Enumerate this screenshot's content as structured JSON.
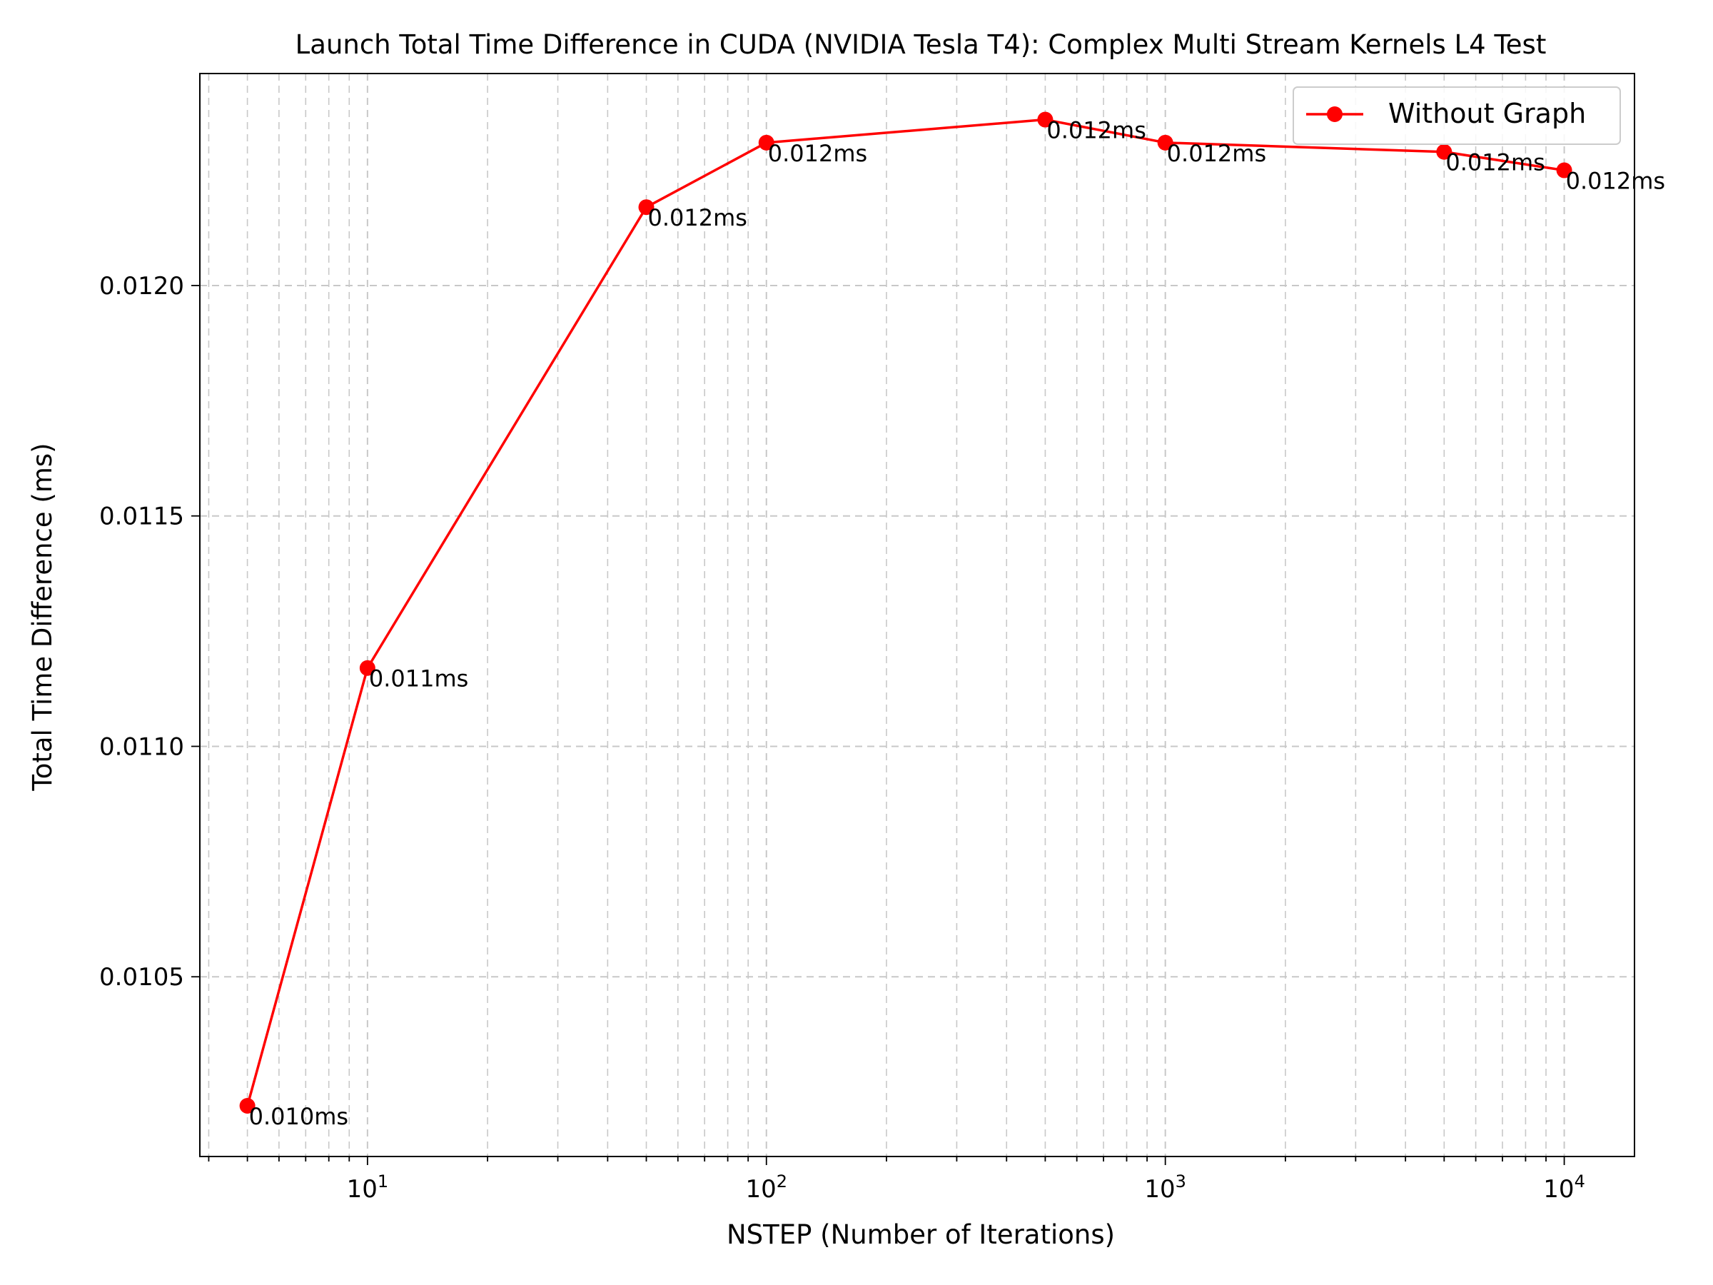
{
  "chart_data": {
    "type": "line",
    "title": "Launch Total Time Difference in CUDA (NVIDIA Tesla T4): Complex Multi Stream Kernels L4 Test",
    "xlabel": "NSTEP (Number of Iterations)",
    "ylabel": "Total Time Difference (ms)",
    "xscale": "log",
    "xlim": [
      3.8,
      15000
    ],
    "ylim": [
      0.01011,
      0.01246
    ],
    "x_ticks": [
      {
        "value": 10,
        "base": "10",
        "exp": "1"
      },
      {
        "value": 100,
        "base": "10",
        "exp": "2"
      },
      {
        "value": 1000,
        "base": "10",
        "exp": "3"
      },
      {
        "value": 10000,
        "base": "10",
        "exp": "4"
      }
    ],
    "y_ticks": [
      {
        "value": 0.0105,
        "label": "0.0105"
      },
      {
        "value": 0.011,
        "label": "0.0110"
      },
      {
        "value": 0.0115,
        "label": "0.0115"
      },
      {
        "value": 0.012,
        "label": "0.0120"
      }
    ],
    "grid": true,
    "legend_position": "top-right",
    "series": [
      {
        "name": "Without Graph",
        "color": "#ff0000",
        "x": [
          5,
          10,
          50,
          100,
          500,
          1000,
          5000,
          10000
        ],
        "y": [
          0.01022,
          0.01117,
          0.01217,
          0.01231,
          0.01236,
          0.01231,
          0.01229,
          0.01225
        ],
        "labels": [
          "0.010ms",
          "0.011ms",
          "0.012ms",
          "0.012ms",
          "0.012ms",
          "0.012ms",
          "0.012ms",
          "0.012ms"
        ]
      }
    ]
  }
}
